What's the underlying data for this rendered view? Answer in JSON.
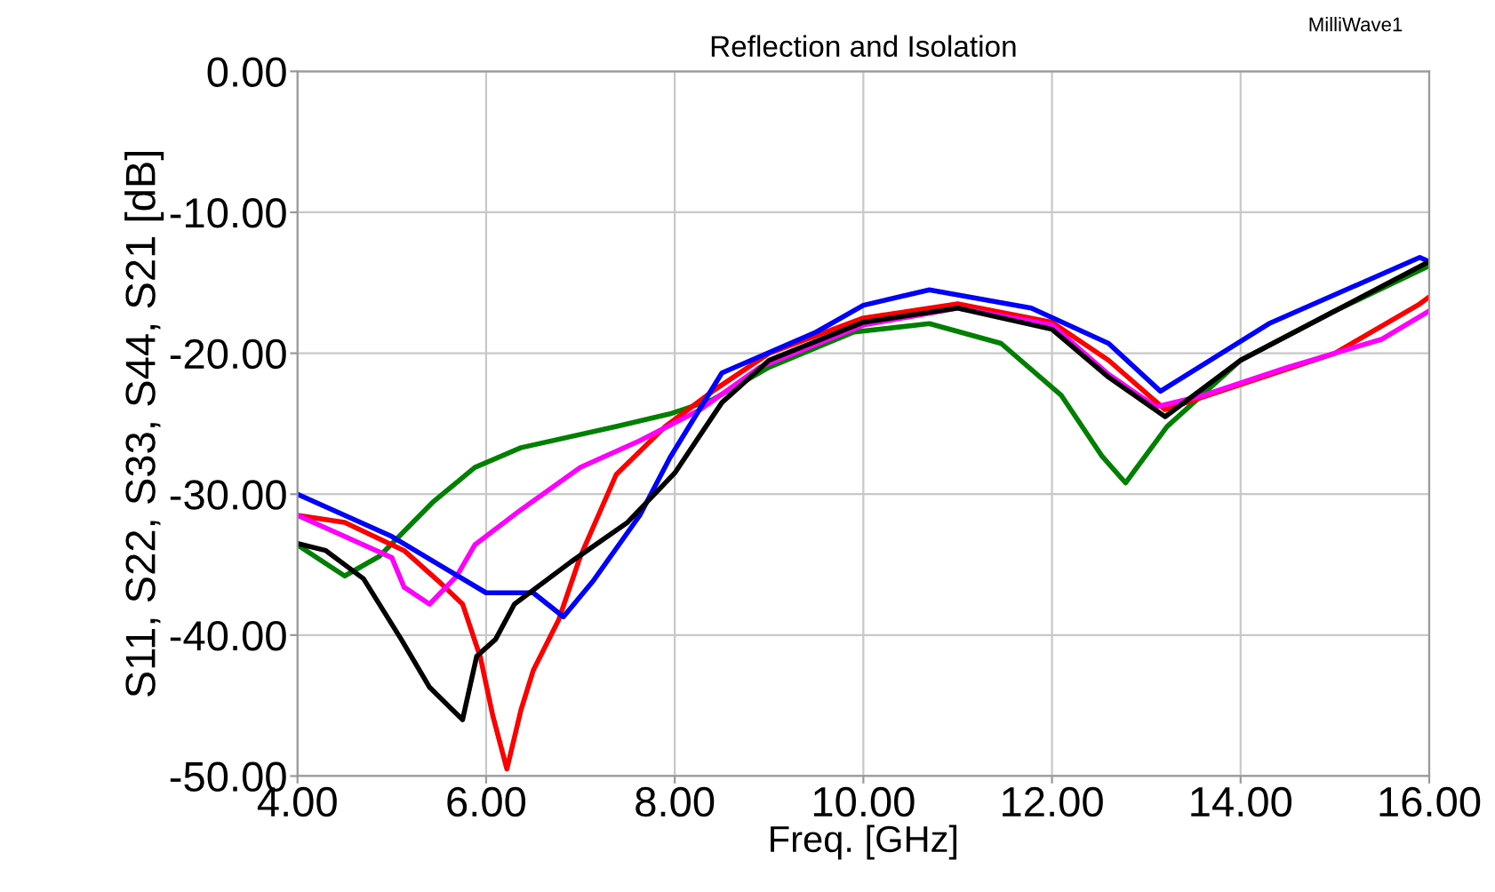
{
  "chart_data": {
    "type": "line",
    "title": "Reflection and Isolation",
    "xlabel": "Freq. [GHz]",
    "ylabel": "S11, S22, S33, S44, S21 [dB]",
    "annotations": [
      "MilliWave1"
    ],
    "xlim": [
      4,
      16
    ],
    "ylim": [
      -50,
      0
    ],
    "xticks": [
      {
        "value": 4,
        "label": "4.00"
      },
      {
        "value": 6,
        "label": "6.00"
      },
      {
        "value": 8,
        "label": "8.00"
      },
      {
        "value": 10,
        "label": "10.00"
      },
      {
        "value": 12,
        "label": "12.00"
      },
      {
        "value": 14,
        "label": "14.00"
      },
      {
        "value": 16,
        "label": "16.00"
      }
    ],
    "yticks": [
      {
        "value": -50,
        "label": "-50.00"
      },
      {
        "value": -40,
        "label": "-40.00"
      },
      {
        "value": -30,
        "label": "-30.00"
      },
      {
        "value": -20,
        "label": "-20.00"
      },
      {
        "value": -10,
        "label": "-10.00"
      },
      {
        "value": 0,
        "label": "0.00"
      }
    ],
    "grid": true,
    "legend": false,
    "line_style": "solid",
    "marker": "none",
    "series": [
      {
        "color": "#008000",
        "x": [
          4.0,
          4.5,
          4.87,
          5.43,
          5.88,
          6.37,
          7.38,
          7.95,
          8.4,
          9.0,
          9.9,
          10.7,
          11.46,
          12.1,
          12.53,
          12.78,
          13.22,
          14.0,
          15.0,
          16.0
        ],
        "values": [
          -33.6,
          -35.8,
          -34.4,
          -30.6,
          -28.1,
          -26.7,
          -25.2,
          -24.3,
          -23.3,
          -21.0,
          -18.5,
          -17.9,
          -19.3,
          -23.0,
          -27.3,
          -29.2,
          -25.2,
          -20.5,
          -17.0,
          -13.8
        ]
      },
      {
        "color": "#ff0000",
        "x": [
          4.0,
          4.5,
          5.13,
          5.5,
          5.75,
          5.94,
          6.07,
          6.22,
          6.37,
          6.5,
          6.77,
          7.0,
          7.38,
          7.9,
          8.4,
          9.0,
          10.0,
          11.0,
          12.0,
          12.6,
          13.2,
          13.65,
          15.0,
          15.9,
          16.0
        ],
        "values": [
          -31.5,
          -32.0,
          -34.0,
          -36.2,
          -37.8,
          -41.6,
          -45.7,
          -49.5,
          -45.3,
          -42.5,
          -38.9,
          -34.4,
          -28.6,
          -25.2,
          -22.7,
          -20.0,
          -17.5,
          -16.5,
          -17.8,
          -20.5,
          -24.0,
          -23.0,
          -20.0,
          -16.5,
          -16.0
        ]
      },
      {
        "color": "#ff00ff",
        "x": [
          4.0,
          4.5,
          5.0,
          5.13,
          5.4,
          5.69,
          5.88,
          6.37,
          7.0,
          7.63,
          8.27,
          8.9,
          10.0,
          11.0,
          12.0,
          12.6,
          13.1,
          13.6,
          14.5,
          15.5,
          16.0
        ],
        "values": [
          -31.5,
          -33.0,
          -34.5,
          -36.6,
          -37.8,
          -35.8,
          -33.6,
          -31.1,
          -28.1,
          -26.2,
          -24.0,
          -21.0,
          -18.0,
          -16.8,
          -18.0,
          -21.5,
          -23.8,
          -23.0,
          -21.0,
          -19.0,
          -17.0
        ]
      },
      {
        "color": "#0000ff",
        "x": [
          4.0,
          4.5,
          5.0,
          5.5,
          6.0,
          6.5,
          6.82,
          7.13,
          7.63,
          7.95,
          8.5,
          9.5,
          10.0,
          10.7,
          11.78,
          12.6,
          13.15,
          14.3,
          15.9,
          16.0
        ],
        "values": [
          -30.0,
          -31.5,
          -33.0,
          -35.0,
          -37.0,
          -37.0,
          -38.7,
          -36.2,
          -31.5,
          -27.4,
          -21.4,
          -18.5,
          -16.6,
          -15.5,
          -16.8,
          -19.3,
          -22.7,
          -17.9,
          -13.2,
          -13.5
        ]
      },
      {
        "color": "#000000",
        "x": [
          4.0,
          4.3,
          4.7,
          5.1,
          5.4,
          5.75,
          5.9,
          6.1,
          6.3,
          6.9,
          7.5,
          8.0,
          8.5,
          9.0,
          10.0,
          11.0,
          12.0,
          12.6,
          13.2,
          14.0,
          15.0,
          16.0
        ],
        "values": [
          -33.5,
          -34.0,
          -36.0,
          -40.3,
          -43.7,
          -46.0,
          -41.5,
          -40.3,
          -37.8,
          -34.8,
          -32.0,
          -28.5,
          -23.5,
          -20.5,
          -17.8,
          -16.8,
          -18.3,
          -21.7,
          -24.5,
          -20.5,
          -17.0,
          -13.5
        ]
      }
    ]
  }
}
